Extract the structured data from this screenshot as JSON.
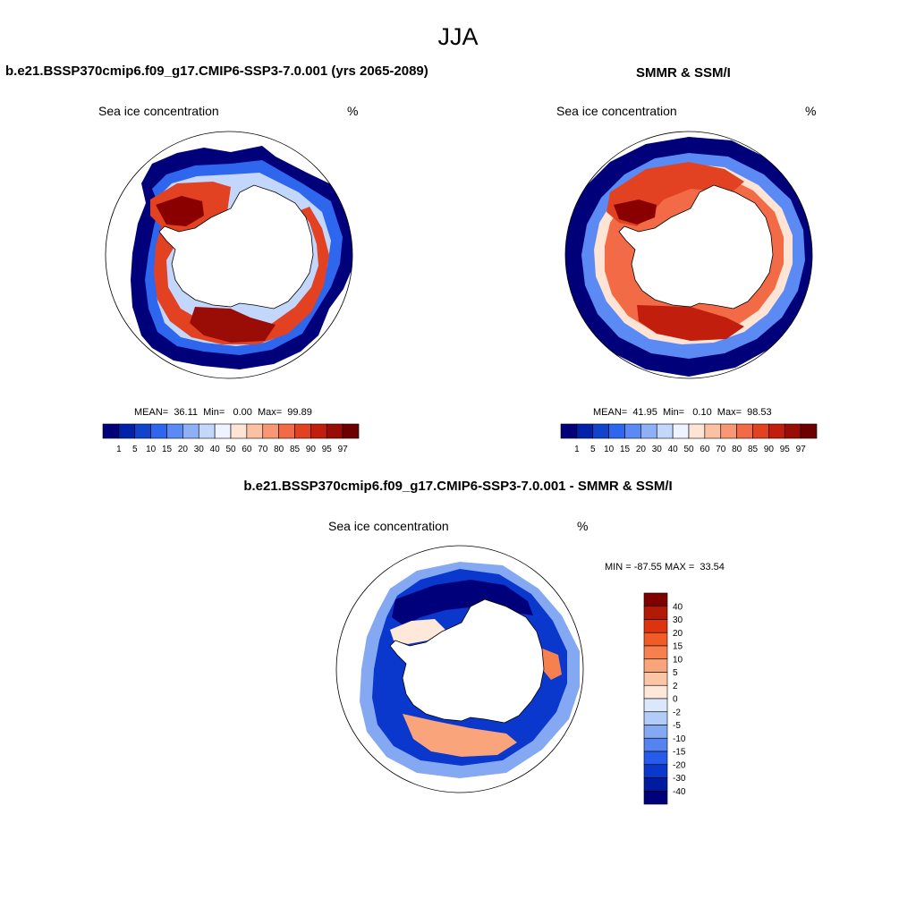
{
  "figure": {
    "season": "JJA"
  },
  "panels": {
    "model": {
      "title": "b.e21.BSSP370cmip6.f09_g17.CMIP6-SSP3-7.0.001 (yrs 2065-2089)",
      "variable": "Sea ice concentration",
      "units": "%",
      "stats_label": "MEAN=  36.11  Min=   0.00  Max=  99.89",
      "stats": {
        "mean": 36.11,
        "min": 0.0,
        "max": 99.89
      }
    },
    "obs": {
      "title": "SMMR & SSM/I",
      "variable": "Sea ice concentration",
      "units": "%",
      "stats_label": "MEAN=  41.95  Min=   0.10  Max=  98.53",
      "stats": {
        "mean": 41.95,
        "min": 0.1,
        "max": 98.53
      }
    },
    "diff": {
      "title": "b.e21.BSSP370cmip6.f09_g17.CMIP6-SSP3-7.0.001 - SMMR & SSM/I",
      "variable": "Sea ice concentration",
      "units": "%",
      "stats_label": "MIN = -87.55 MAX =  33.54",
      "stats": {
        "min": -87.55,
        "max": 33.54
      }
    }
  },
  "colorbars": {
    "concentration": {
      "labels": [
        "1",
        "5",
        "10",
        "15",
        "20",
        "30",
        "40",
        "50",
        "60",
        "70",
        "80",
        "85",
        "90",
        "95",
        "97"
      ],
      "colors": [
        "#00007a",
        "#0022a8",
        "#1144cc",
        "#2f66ee",
        "#5b8af5",
        "#8eb0f8",
        "#c3d6fb",
        "#eef3ff",
        "#fde4d4",
        "#fcc0a2",
        "#f99674",
        "#f36a47",
        "#e24122",
        "#c11e0d",
        "#9a0c06",
        "#6e0000"
      ]
    },
    "difference": {
      "labels": [
        "40",
        "30",
        "20",
        "15",
        "10",
        "5",
        "2",
        "0",
        "-2",
        "-5",
        "-10",
        "-15",
        "-20",
        "-30",
        "-40"
      ],
      "colors": [
        "#800000",
        "#b01a06",
        "#dd340f",
        "#f25a27",
        "#f6814f",
        "#f9a47b",
        "#fcc6a6",
        "#fee8da",
        "#dbe7fb",
        "#b2cbf7",
        "#85a8f3",
        "#5583ef",
        "#275cea",
        "#0a37cc",
        "#001c9e",
        "#00007a"
      ]
    }
  }
}
